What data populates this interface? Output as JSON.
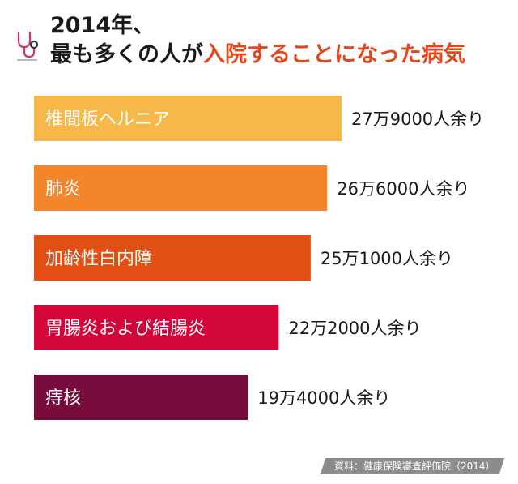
{
  "header": {
    "title_line1": "2014年、",
    "title_line2_plain": "最も多くの人が",
    "title_line2_highlight": "入院することになった病気"
  },
  "chart_data": {
    "type": "bar",
    "orientation": "horizontal",
    "categories": [
      "椎間板ヘルニア",
      "肺炎",
      "加齢性白内障",
      "胃腸炎および結腸炎",
      "痔核"
    ],
    "values": [
      279000,
      266000,
      251000,
      222000,
      194000
    ],
    "value_labels": [
      "27万9000人余り",
      "26万6000人余り",
      "25万1000人余り",
      "22万2000人余り",
      "19万4000人余り"
    ],
    "colors": [
      "#f7b84a",
      "#f3862a",
      "#e24f14",
      "#d3063a",
      "#780c3c"
    ],
    "title": "2014年、最も多くの人が入院することになった病気"
  },
  "source": "資料：健康保険審査評価院（2014）",
  "icons": {
    "header_icon": "stethoscope-icon"
  }
}
